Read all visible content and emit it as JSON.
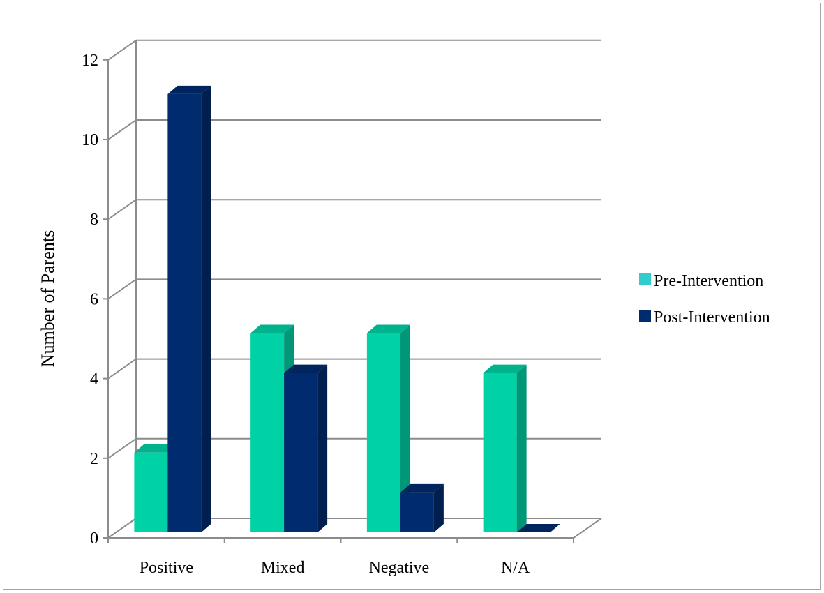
{
  "chart_data": {
    "type": "bar",
    "style": "3d-clustered-column",
    "title": "",
    "xlabel": "",
    "ylabel": "Number of Parents",
    "categories": [
      "Positive",
      "Mixed",
      "Negative",
      "N/A"
    ],
    "series": [
      {
        "name": "Pre-Intervention",
        "values": [
          2,
          5,
          5,
          4
        ],
        "color": "#00d2a6",
        "legend_color": "#33cccc"
      },
      {
        "name": "Post-Intervention",
        "values": [
          11,
          4,
          1,
          0
        ],
        "color": "#002b6e",
        "legend_color": "#002b6e"
      }
    ],
    "ylim": [
      0,
      12
    ],
    "yticks": [
      "0",
      "2",
      "4",
      "6",
      "8",
      "10",
      "12"
    ],
    "grid": true,
    "legend_position": "right"
  }
}
